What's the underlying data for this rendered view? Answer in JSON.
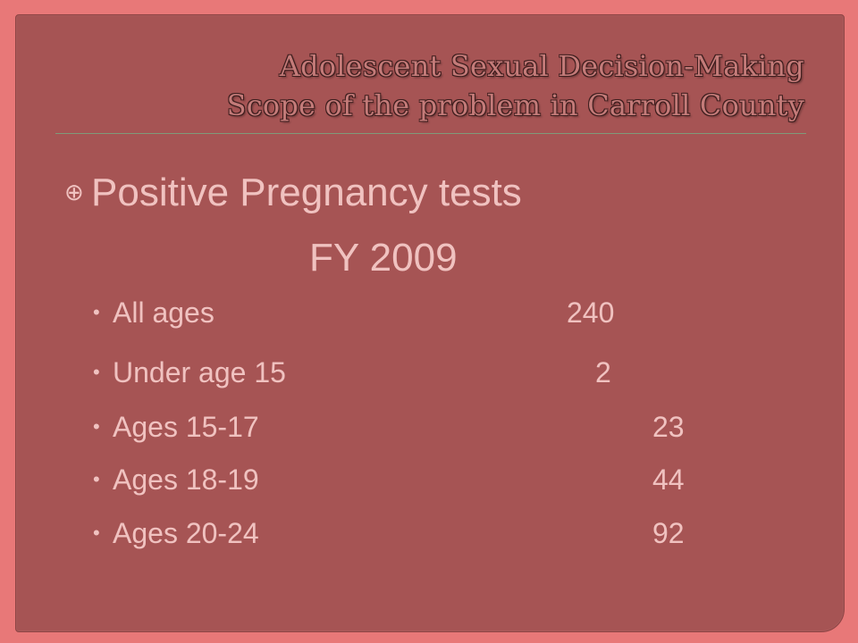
{
  "title": {
    "line1": "Adolescent Sexual Decision-Making",
    "line2": "Scope of the problem in Carroll County"
  },
  "main": {
    "bullet_icon": "circled-plus-icon",
    "heading": "Positive Pregnancy tests",
    "subheading": "FY 2009",
    "items": [
      {
        "label": "All ages",
        "value": "240"
      },
      {
        "label": "Under age 15",
        "value": "2"
      },
      {
        "label": "Ages 15-17",
        "value": "23"
      },
      {
        "label": "Ages 18-19",
        "value": "44"
      },
      {
        "label": "Ages 20-24",
        "value": "92"
      }
    ]
  },
  "colors": {
    "background": "#e87878",
    "panel": "#a65454",
    "text": "#f0c2c0",
    "title": "#c47b79"
  }
}
